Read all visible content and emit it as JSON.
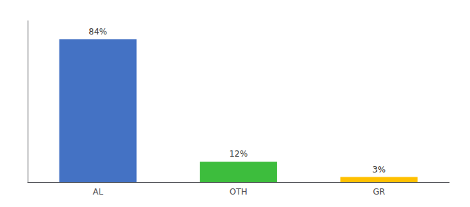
{
  "chart_data": {
    "type": "bar",
    "categories": [
      "AL",
      "OTH",
      "GR"
    ],
    "values": [
      84,
      12,
      3
    ],
    "value_labels": [
      "84%",
      "12%",
      "3%"
    ],
    "data_labels": true,
    "colors": [
      "#4472C4",
      "#3DBD3D",
      "#FFC000"
    ],
    "ylim": [
      0,
      95
    ],
    "tick_labels": "x",
    "grid": false
  }
}
